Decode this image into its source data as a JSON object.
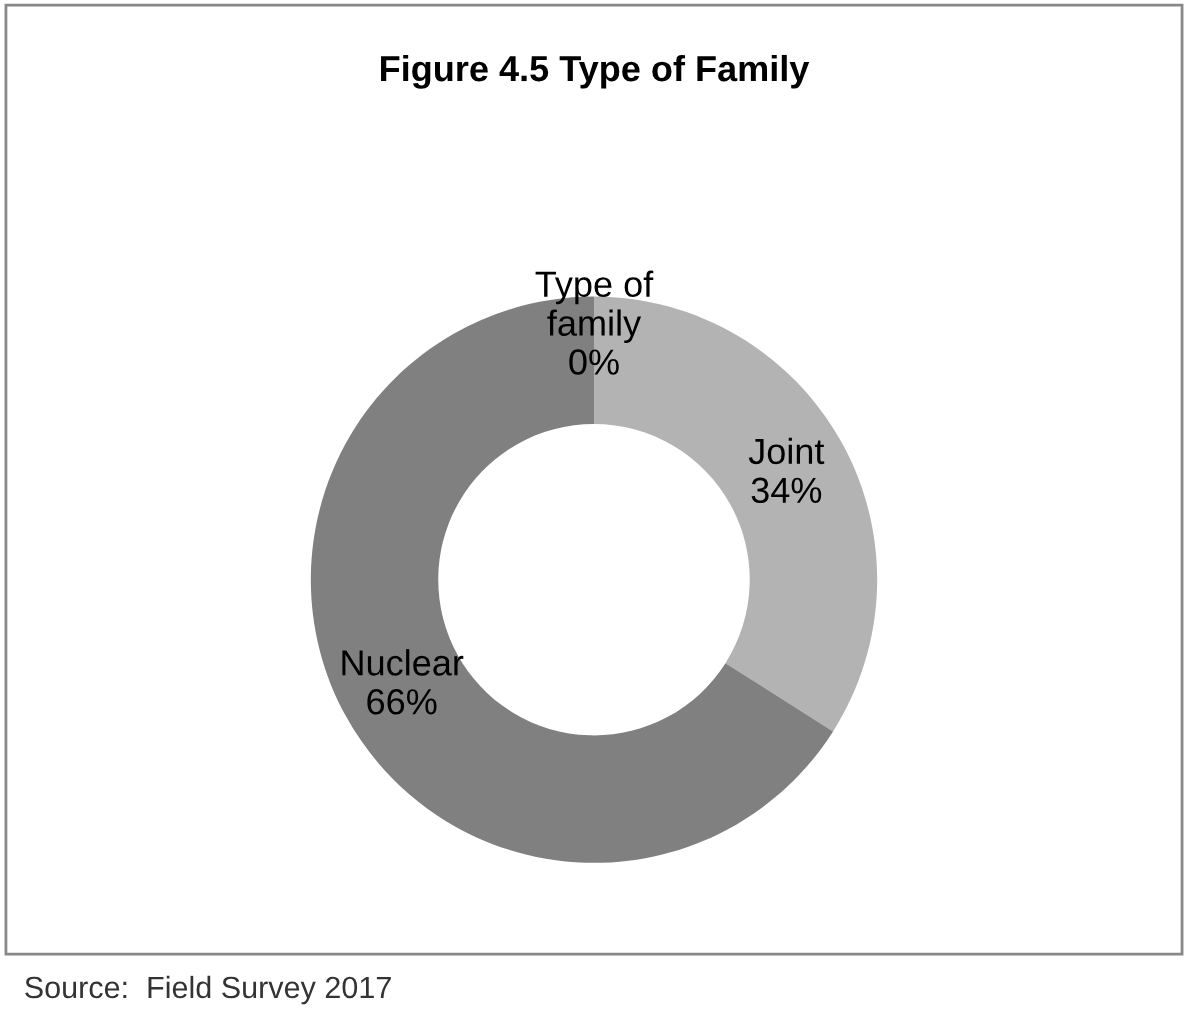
{
  "chart_data": {
    "type": "donut",
    "title": "Figure 4.5 Type of Family",
    "categories": [
      "Type of family",
      "Joint",
      "Nuclear"
    ],
    "values": [
      0,
      34,
      66
    ],
    "value_labels": [
      "0%",
      "34%",
      "66%"
    ],
    "colors": [
      "#595959",
      "#b3b3b3",
      "#808080"
    ],
    "legend": false,
    "annotations": [
      "Source:  Field Survey 2017"
    ]
  }
}
